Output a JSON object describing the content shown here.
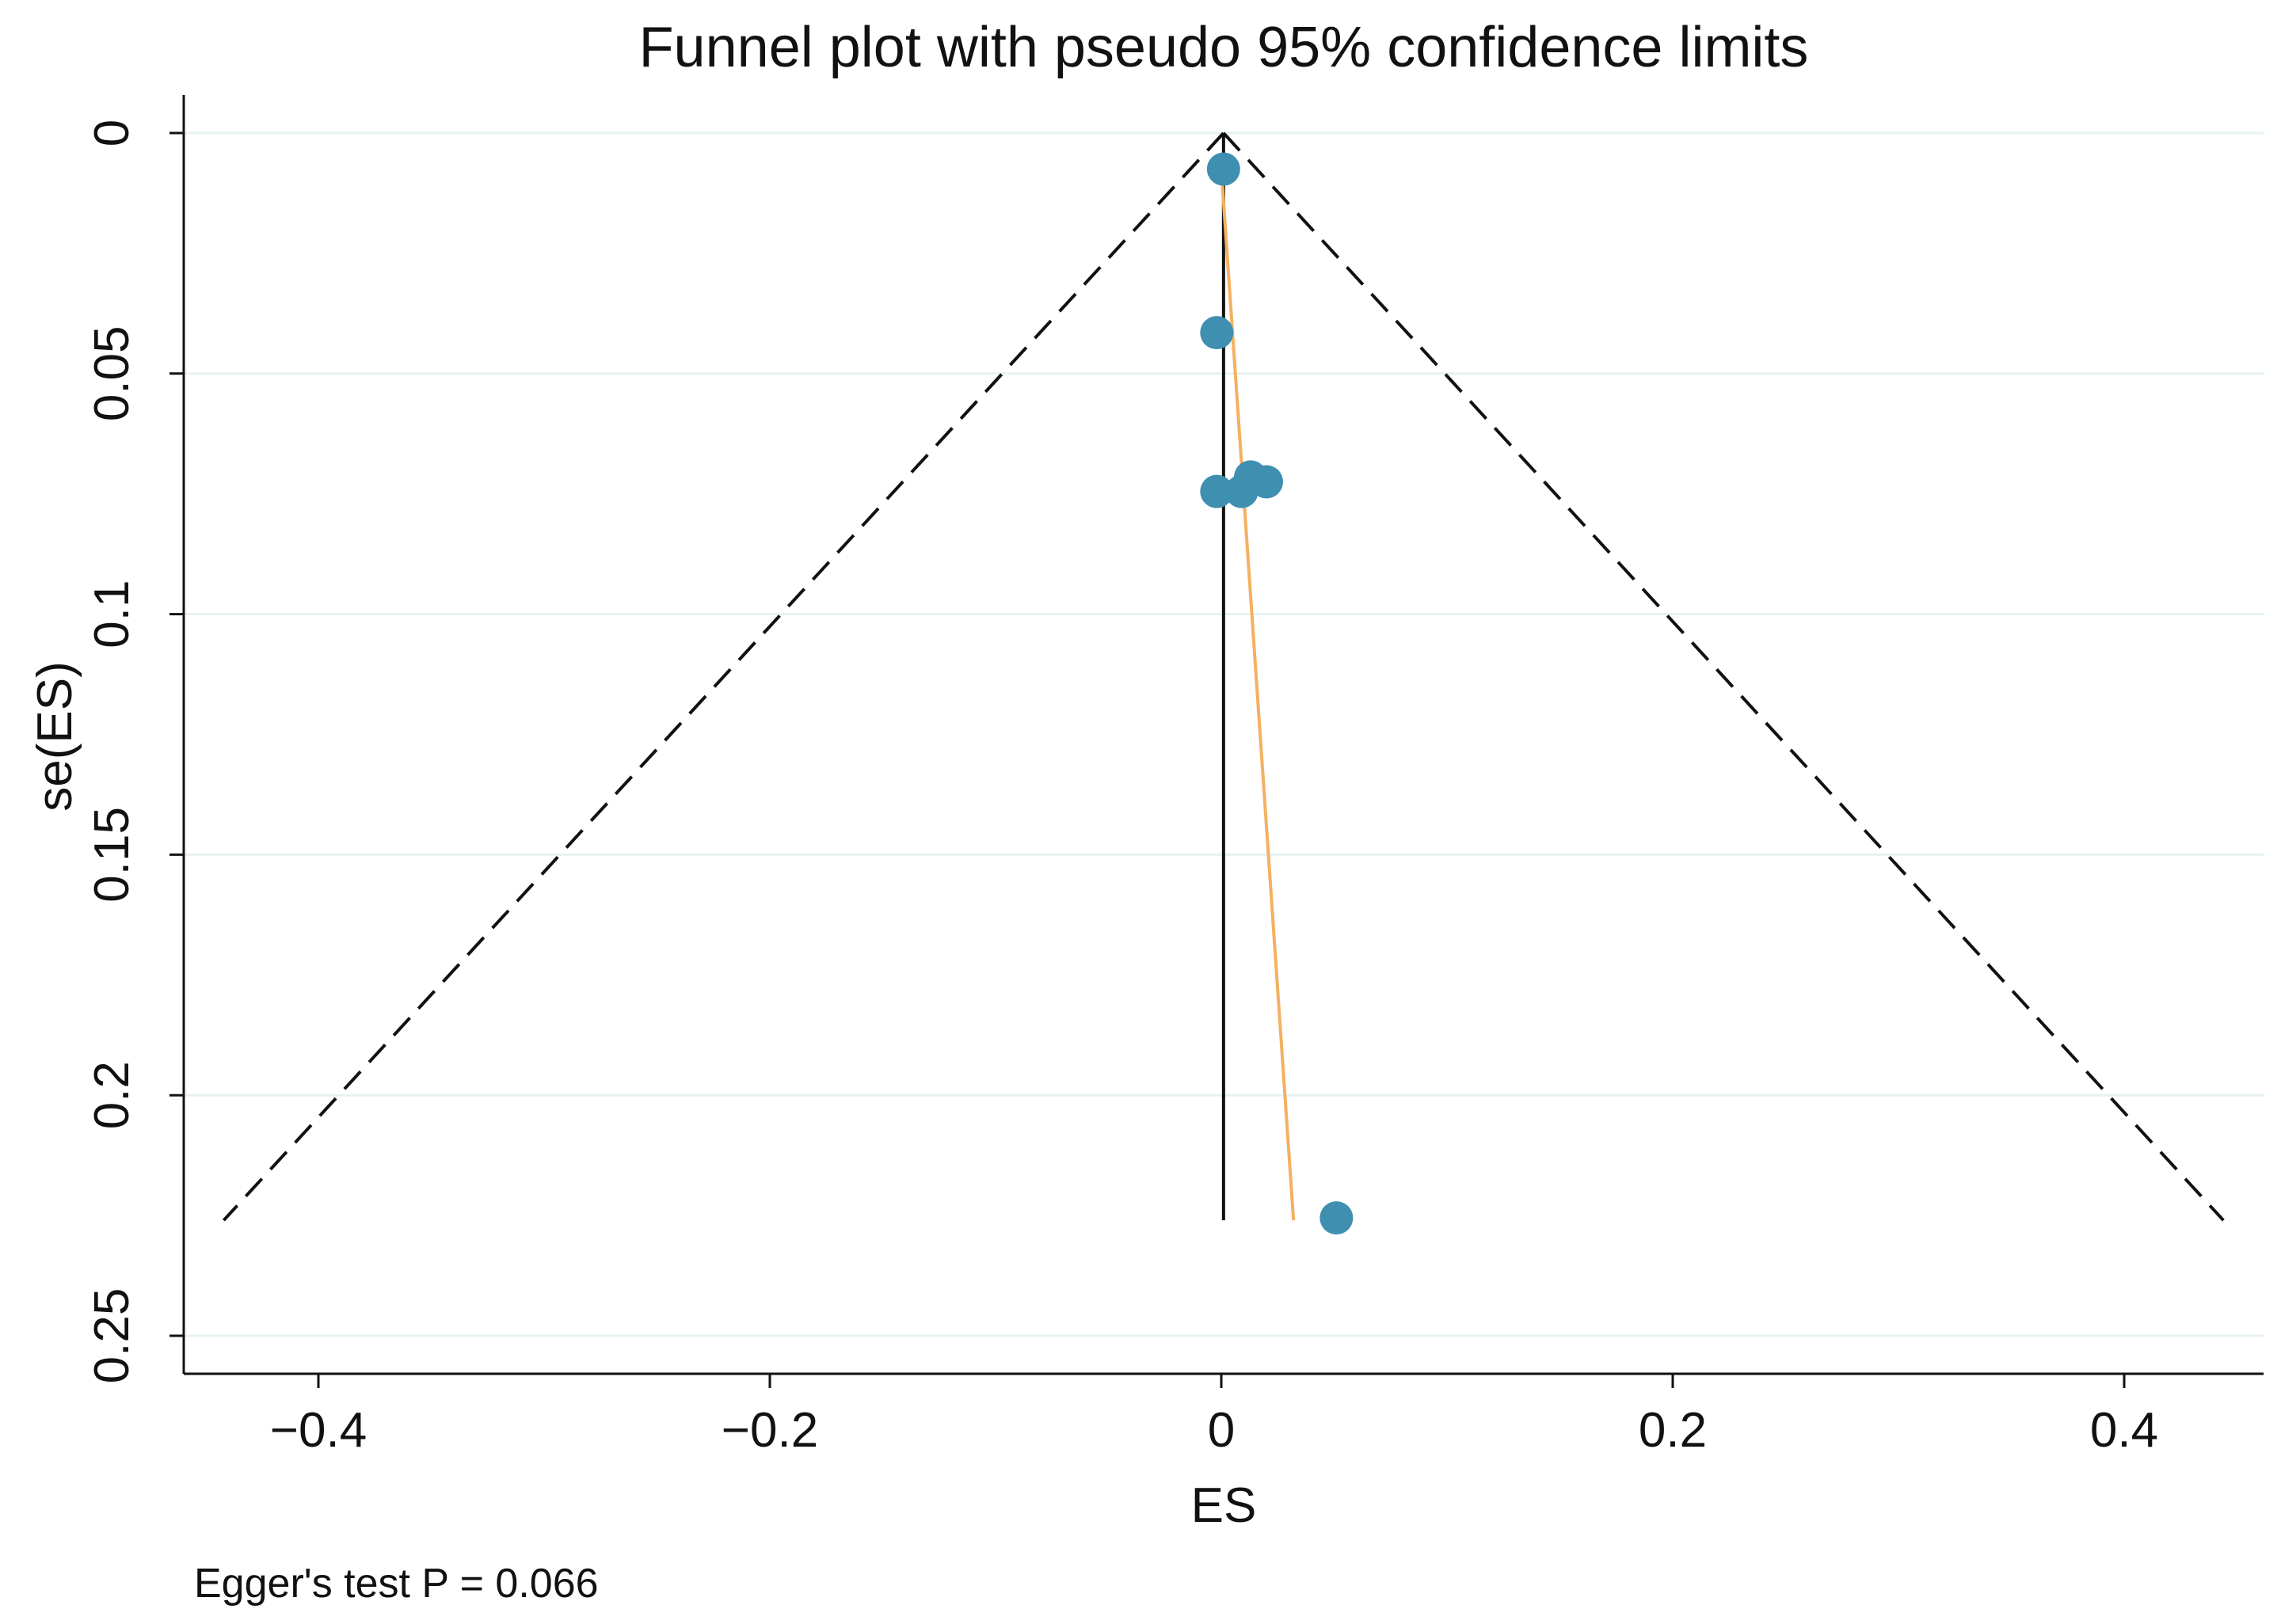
{
  "chart_data": {
    "type": "scatter",
    "title": "Funnel plot with pseudo 95% confidence limits",
    "xlabel": "ES",
    "ylabel": "se(ES)",
    "xlim": [
      -0.45,
      0.45
    ],
    "ylim": [
      0,
      0.25
    ],
    "y_reversed": true,
    "x_ticks": [
      -0.4,
      -0.2,
      0,
      0.2,
      0.4
    ],
    "x_tick_labels": [
      "−0.4",
      "−0.2",
      "0",
      "0.2",
      "0.4"
    ],
    "y_ticks": [
      0,
      0.05,
      0.1,
      0.15,
      0.2,
      0.25
    ],
    "y_tick_labels": [
      "0",
      "0.05",
      "0.1",
      "0.15",
      "0.2",
      "0.25"
    ],
    "grid": true,
    "pooled_estimate": 0.001,
    "se_max": 0.226,
    "ci_multiplier": 1.96,
    "points": [
      {
        "x": 0.001,
        "y": 0.0075
      },
      {
        "x": -0.002,
        "y": 0.0415
      },
      {
        "x": -0.002,
        "y": 0.0745
      },
      {
        "x": 0.009,
        "y": 0.0745
      },
      {
        "x": 0.013,
        "y": 0.0715
      },
      {
        "x": 0.02,
        "y": 0.0725
      },
      {
        "x": 0.051,
        "y": 0.2255
      }
    ],
    "egger_line": {
      "x": [
        0.0,
        0.032
      ],
      "y": [
        0.0075,
        0.226
      ]
    },
    "colors": {
      "points": "#3e8fb0",
      "egger_line": "#f5b061",
      "funnel": "#111111",
      "pooled_line": "#111111",
      "grid": "#e6f2f2",
      "axes": "#111111"
    },
    "annotation": "Egger's test P = 0.066"
  }
}
